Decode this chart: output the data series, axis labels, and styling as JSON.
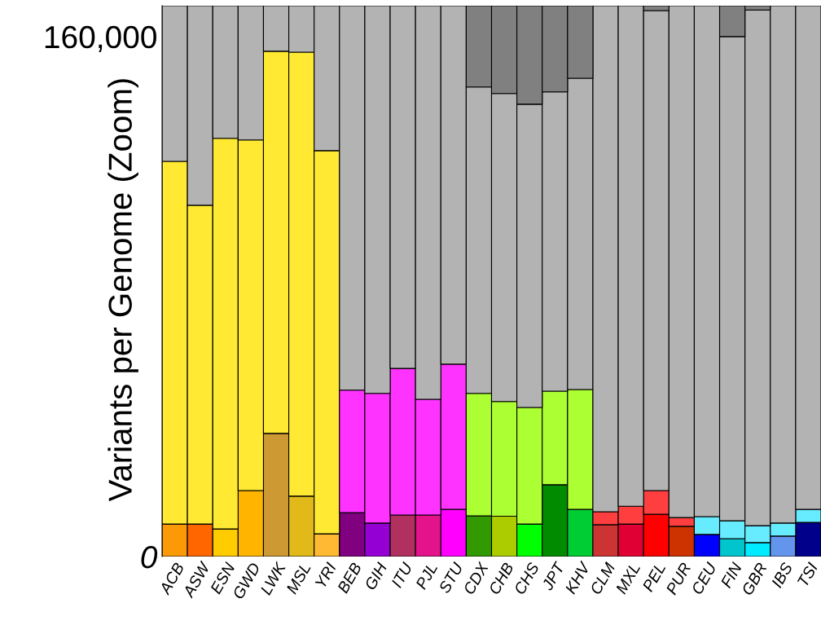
{
  "chart_data": {
    "type": "bar",
    "stacked": true,
    "ylabel": "Variants per Genome (Zoom)",
    "categories": [
      "ACB",
      "ASW",
      "ESN",
      "GWD",
      "LWK",
      "MSL",
      "YRI",
      "BEB",
      "GIH",
      "ITU",
      "PJL",
      "STU",
      "CDX",
      "CHB",
      "CHS",
      "JPT",
      "KHV",
      "CLM",
      "MXL",
      "PEL",
      "PUR",
      "CEU",
      "FIN",
      "GBR",
      "IBS",
      "TSI"
    ],
    "ylim": [
      0,
      169500
    ],
    "yticks": [
      {
        "value": 0,
        "label": "0"
      },
      {
        "value": 160000,
        "label": "160,000"
      }
    ],
    "grid": false,
    "legend": false,
    "series": [
      {
        "values": [
          10000,
          10000,
          8500,
          20300,
          37900,
          18600,
          7000,
          13500,
          10300,
          12800,
          12800,
          14500,
          12500,
          12400,
          10000,
          22100,
          14500,
          9800,
          10000,
          13000,
          9300,
          6800,
          5500,
          4300,
          6300,
          10500
        ],
        "colors": [
          "#fb9a06",
          "#ff6600",
          "#ffcc00",
          "#ffb400",
          "#cc9933",
          "#e1b919",
          "#ffb933",
          "#800080",
          "#9400d3",
          "#b03060",
          "#e4128b",
          "#ff00ff",
          "#339900",
          "#adcc00",
          "#00ff00",
          "#008b00",
          "#00cd33",
          "#cc3333",
          "#e10033",
          "#ff0000",
          "#cc3300",
          "#0000ff",
          "#00c5cd",
          "#00ebff",
          "#6495ed",
          "#00008b"
        ]
      },
      {
        "values": [
          111600,
          98100,
          120200,
          107900,
          117600,
          136600,
          117900,
          37700,
          39900,
          45100,
          35600,
          44700,
          37700,
          35300,
          35900,
          28800,
          36900,
          4000,
          5500,
          7300,
          2700,
          5500,
          5500,
          5200,
          4000,
          4000
        ],
        "colors": [
          "#ffe933",
          "#ffe933",
          "#ffe933",
          "#ffe933",
          "#ffe933",
          "#ffe933",
          "#ffe933",
          "#ff33ff",
          "#ff33ff",
          "#ff33ff",
          "#ff33ff",
          "#ff33ff",
          "#abff33",
          "#abff33",
          "#abff33",
          "#abff33",
          "#abff33",
          "#ff3f3f",
          "#ff3f3f",
          "#ff3f3f",
          "#ff3f3f",
          "#66ebff",
          "#66ebff",
          "#66ebff",
          "#66ebff",
          "#66ebff"
        ]
      },
      {
        "color": "#b3b3b3",
        "values": [
          47900,
          61400,
          40800,
          41300,
          14000,
          14300,
          44600,
          118300,
          119300,
          111600,
          121100,
          110300,
          94300,
          94800,
          93300,
          92100,
          95800,
          155700,
          154000,
          147700,
          157500,
          157200,
          149000,
          158700,
          159200,
          155000
        ]
      },
      {
        "color": "#808080",
        "values": [
          null,
          null,
          null,
          null,
          null,
          null,
          null,
          null,
          null,
          null,
          null,
          null,
          25000,
          27000,
          30300,
          26500,
          22300,
          null,
          null,
          1500,
          null,
          null,
          9500,
          1300,
          null,
          null
        ]
      }
    ]
  }
}
